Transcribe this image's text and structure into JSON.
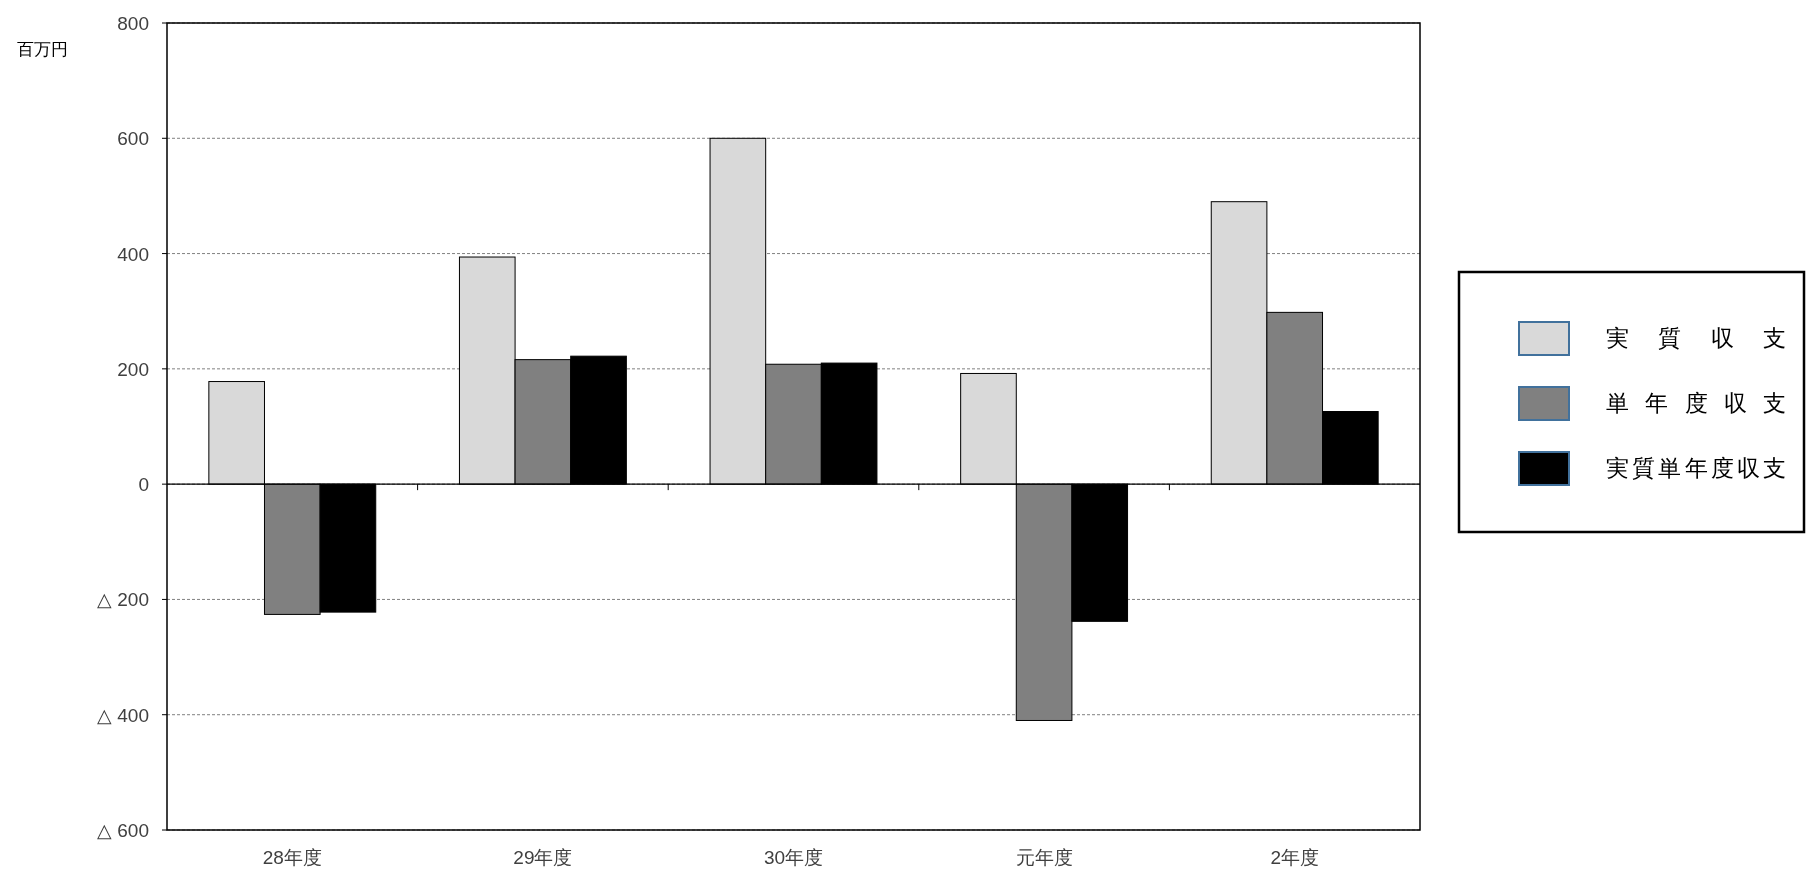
{
  "chart_data": {
    "type": "bar",
    "ylabel": "百万円",
    "categories": [
      "28年度",
      "29年度",
      "30年度",
      "元年度",
      "2年度"
    ],
    "series": [
      {
        "name": "実質収支",
        "color": "#d9d9d9",
        "values": [
          178,
          394,
          600,
          192,
          490
        ]
      },
      {
        "name": "単年度収支",
        "color": "#808080",
        "values": [
          -226,
          216,
          208,
          -410,
          298
        ]
      },
      {
        "name": "実質単年度収支",
        "color": "#000000",
        "values": [
          -222,
          222,
          210,
          -238,
          126
        ]
      }
    ],
    "ylim": [
      -600,
      800
    ],
    "yticks": [
      {
        "value": -600,
        "label": "△ 600"
      },
      {
        "value": -400,
        "label": "△ 400"
      },
      {
        "value": -200,
        "label": "△ 200"
      },
      0,
      200,
      400,
      600,
      800
    ],
    "grid": "y",
    "legend": "right"
  }
}
